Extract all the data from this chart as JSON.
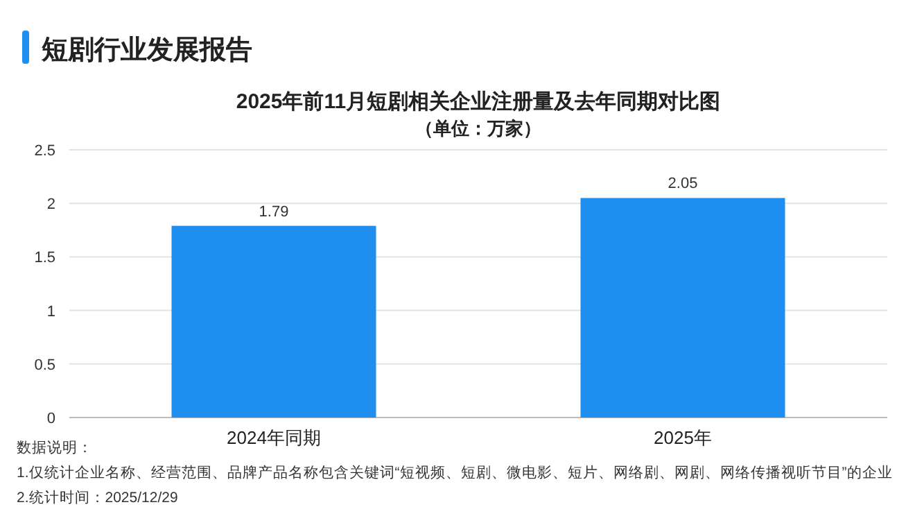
{
  "chart_data": {
    "type": "bar",
    "title": "短剧行业发展报告",
    "subtitle": "2025年前11月短剧相关企业注册量及去年同期对比图",
    "ylabel": "（单位：万家）",
    "categories": [
      "2024年同期",
      "2025年"
    ],
    "values": [
      1.79,
      2.05
    ],
    "color": "#1e8ff0",
    "ylim": [
      0,
      2.5
    ],
    "yticks": [
      0,
      0.5,
      1,
      1.5,
      2,
      2.5
    ],
    "grid": "y",
    "data_labels": true,
    "annotations": [
      "数据说明：",
      "1.仅统计企业名称、经营范围、品牌产品名称包含关键词“短视频、短剧、微电影、短片、网络剧、网剧、网络传播视听节目”的企业",
      "2.统计时间：2025/12/29"
    ]
  }
}
